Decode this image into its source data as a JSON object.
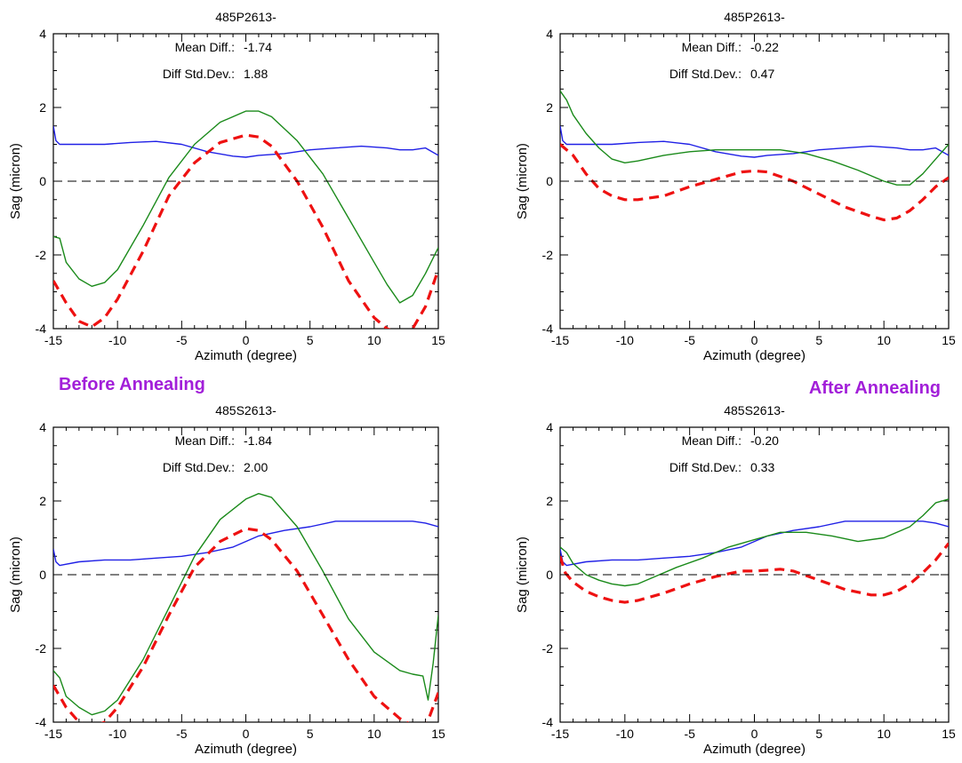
{
  "labels": {
    "before": "Before Annealing",
    "after": "After Annealing"
  },
  "colors": {
    "blue": "#2020e6",
    "green": "#1a8a1a",
    "red": "#ee1111",
    "label": "#a21fd9"
  },
  "chart_data": [
    {
      "type": "line",
      "title": "485P2613-",
      "xlabel": "Azimuth (degree)",
      "ylabel": "Sag (micron)",
      "xlim": [
        -15,
        15
      ],
      "ylim": [
        -4,
        4
      ],
      "xticks": [
        -15,
        -10,
        -5,
        0,
        5,
        10,
        15
      ],
      "yticks": [
        -4,
        -2,
        0,
        2,
        4
      ],
      "annotations": [
        {
          "label": "Mean Diff.:",
          "value": "-1.74"
        },
        {
          "label": "Diff Std.Dev.:",
          "value": "1.88"
        }
      ],
      "series": [
        {
          "color": "blue",
          "style": "solid",
          "x": [
            -15,
            -14.8,
            -14.5,
            -13,
            -11,
            -9,
            -7,
            -5,
            -3,
            -1,
            0,
            1,
            3,
            5,
            7,
            9,
            11,
            12,
            13,
            14,
            15
          ],
          "y": [
            1.5,
            1.1,
            1.0,
            1.0,
            1.0,
            1.05,
            1.08,
            1.0,
            0.8,
            0.68,
            0.65,
            0.7,
            0.75,
            0.85,
            0.9,
            0.95,
            0.9,
            0.85,
            0.85,
            0.9,
            0.7
          ]
        },
        {
          "color": "green",
          "style": "solid",
          "x": [
            -15,
            -14.5,
            -14,
            -13,
            -12,
            -11,
            -10,
            -8,
            -6,
            -4,
            -2,
            0,
            1,
            2,
            4,
            6,
            8,
            10,
            11,
            12,
            13,
            14,
            15
          ],
          "y": [
            -1.5,
            -1.55,
            -2.2,
            -2.65,
            -2.85,
            -2.75,
            -2.4,
            -1.2,
            0.1,
            1.0,
            1.6,
            1.9,
            1.9,
            1.75,
            1.1,
            0.2,
            -1.0,
            -2.2,
            -2.8,
            -3.3,
            -3.1,
            -2.5,
            -1.8
          ]
        },
        {
          "color": "red",
          "style": "dashed",
          "x": [
            -15,
            -14,
            -13,
            -12,
            -11,
            -10,
            -8,
            -6,
            -4,
            -2,
            0,
            1,
            2,
            4,
            6,
            8,
            10,
            11,
            12,
            13,
            14,
            15
          ],
          "y": [
            -2.7,
            -3.3,
            -3.8,
            -3.95,
            -3.7,
            -3.2,
            -1.9,
            -0.4,
            0.5,
            1.05,
            1.25,
            1.2,
            0.95,
            0.0,
            -1.25,
            -2.7,
            -3.7,
            -4.0,
            -4.15,
            -4.0,
            -3.4,
            -2.4
          ]
        },
        {
          "color": "black",
          "style": "dashed",
          "x": [
            -15,
            15
          ],
          "y": [
            0,
            0
          ]
        }
      ]
    },
    {
      "type": "line",
      "title": "485P2613-",
      "xlabel": "Azimuth (degree)",
      "ylabel": "Sag (micron)",
      "xlim": [
        -15,
        15
      ],
      "ylim": [
        -4,
        4
      ],
      "xticks": [
        -15,
        -10,
        -5,
        0,
        5,
        10,
        15
      ],
      "yticks": [
        -4,
        -2,
        0,
        2,
        4
      ],
      "annotations": [
        {
          "label": "Mean Diff.:",
          "value": "-0.22"
        },
        {
          "label": "Diff Std.Dev.:",
          "value": "0.47"
        }
      ],
      "series": [
        {
          "color": "blue",
          "style": "solid",
          "x": [
            -15,
            -14.8,
            -14.5,
            -13,
            -11,
            -9,
            -7,
            -5,
            -3,
            -1,
            0,
            1,
            3,
            5,
            7,
            9,
            11,
            12,
            13,
            14,
            15
          ],
          "y": [
            1.5,
            1.1,
            1.0,
            1.0,
            1.0,
            1.05,
            1.08,
            1.0,
            0.8,
            0.68,
            0.65,
            0.7,
            0.75,
            0.85,
            0.9,
            0.95,
            0.9,
            0.85,
            0.85,
            0.9,
            0.7
          ]
        },
        {
          "color": "green",
          "style": "solid",
          "x": [
            -15,
            -14.5,
            -14,
            -13,
            -12,
            -11,
            -10,
            -9,
            -7,
            -5,
            -3,
            -1,
            0,
            2,
            4,
            6,
            8,
            10,
            11,
            12,
            13,
            14,
            15
          ],
          "y": [
            2.45,
            2.2,
            1.8,
            1.3,
            0.9,
            0.6,
            0.5,
            0.55,
            0.7,
            0.8,
            0.85,
            0.85,
            0.85,
            0.85,
            0.75,
            0.55,
            0.3,
            0.0,
            -0.1,
            -0.1,
            0.2,
            0.6,
            1.0
          ]
        },
        {
          "color": "red",
          "style": "dashed",
          "x": [
            -15,
            -14,
            -13,
            -12,
            -11,
            -10,
            -9,
            -7,
            -5,
            -3,
            -1,
            0,
            1,
            3,
            5,
            7,
            9,
            10,
            11,
            12,
            13,
            14,
            15
          ],
          "y": [
            1.0,
            0.7,
            0.2,
            -0.2,
            -0.4,
            -0.5,
            -0.5,
            -0.4,
            -0.15,
            0.05,
            0.25,
            0.28,
            0.25,
            0.0,
            -0.35,
            -0.7,
            -0.95,
            -1.05,
            -1.0,
            -0.8,
            -0.5,
            -0.15,
            0.1
          ]
        },
        {
          "color": "black",
          "style": "dashed",
          "x": [
            -15,
            15
          ],
          "y": [
            0,
            0
          ]
        }
      ]
    },
    {
      "type": "line",
      "title": "485S2613-",
      "xlabel": "Azimuth (degree)",
      "ylabel": "Sag (micron)",
      "xlim": [
        -15,
        15
      ],
      "ylim": [
        -4,
        4
      ],
      "xticks": [
        -15,
        -10,
        -5,
        0,
        5,
        10,
        15
      ],
      "yticks": [
        -4,
        -2,
        0,
        2,
        4
      ],
      "annotations": [
        {
          "label": "Mean Diff.:",
          "value": "-1.84"
        },
        {
          "label": "Diff Std.Dev.:",
          "value": "2.00"
        }
      ],
      "series": [
        {
          "color": "blue",
          "style": "solid",
          "x": [
            -15,
            -14.8,
            -14.5,
            -13,
            -11,
            -9,
            -7,
            -5,
            -3,
            -1,
            0,
            1,
            3,
            5,
            7,
            9,
            11,
            13,
            14,
            15
          ],
          "y": [
            0.7,
            0.35,
            0.25,
            0.35,
            0.4,
            0.4,
            0.45,
            0.5,
            0.6,
            0.75,
            0.9,
            1.05,
            1.2,
            1.3,
            1.45,
            1.45,
            1.45,
            1.45,
            1.4,
            1.3
          ]
        },
        {
          "color": "green",
          "style": "solid",
          "x": [
            -15,
            -14.5,
            -14,
            -13,
            -12,
            -11,
            -10,
            -8,
            -6,
            -4,
            -2,
            0,
            1,
            2,
            4,
            6,
            8,
            10,
            12,
            13,
            13.8,
            14.2,
            14.6,
            15
          ],
          "y": [
            -2.6,
            -2.8,
            -3.3,
            -3.6,
            -3.8,
            -3.7,
            -3.4,
            -2.3,
            -0.9,
            0.5,
            1.5,
            2.05,
            2.2,
            2.1,
            1.3,
            0.1,
            -1.2,
            -2.1,
            -2.6,
            -2.7,
            -2.75,
            -3.4,
            -2.4,
            -1.1
          ]
        },
        {
          "color": "red",
          "style": "dashed",
          "x": [
            -15,
            -14,
            -13,
            -12,
            -11,
            -10,
            -8,
            -6,
            -4,
            -2,
            0,
            1,
            2,
            4,
            6,
            8,
            10,
            12,
            13,
            14,
            15
          ],
          "y": [
            -3.0,
            -3.6,
            -4.0,
            -4.15,
            -4.0,
            -3.6,
            -2.5,
            -1.1,
            0.2,
            0.9,
            1.25,
            1.2,
            0.95,
            0.1,
            -1.1,
            -2.3,
            -3.3,
            -3.9,
            -4.1,
            -4.15,
            -3.2
          ]
        },
        {
          "color": "black",
          "style": "dashed",
          "x": [
            -15,
            15
          ],
          "y": [
            0,
            0
          ]
        }
      ]
    },
    {
      "type": "line",
      "title": "485S2613-",
      "xlabel": "Azimuth (degree)",
      "ylabel": "Sag (micron)",
      "xlim": [
        -15,
        15
      ],
      "ylim": [
        -4,
        4
      ],
      "xticks": [
        -15,
        -10,
        -5,
        0,
        5,
        10,
        15
      ],
      "yticks": [
        -4,
        -2,
        0,
        2,
        4
      ],
      "annotations": [
        {
          "label": "Mean Diff.:",
          "value": "-0.20"
        },
        {
          "label": "Diff Std.Dev.:",
          "value": "0.33"
        }
      ],
      "series": [
        {
          "color": "blue",
          "style": "solid",
          "x": [
            -15,
            -14.8,
            -14.5,
            -13,
            -11,
            -9,
            -7,
            -5,
            -3,
            -1,
            0,
            1,
            3,
            5,
            7,
            9,
            11,
            13,
            14,
            15
          ],
          "y": [
            0.7,
            0.35,
            0.25,
            0.35,
            0.4,
            0.4,
            0.45,
            0.5,
            0.6,
            0.75,
            0.9,
            1.05,
            1.2,
            1.3,
            1.45,
            1.45,
            1.45,
            1.45,
            1.4,
            1.3
          ]
        },
        {
          "color": "green",
          "style": "solid",
          "x": [
            -15,
            -14.5,
            -14,
            -13,
            -12,
            -11,
            -10,
            -9,
            -8,
            -6,
            -4,
            -2,
            0,
            2,
            4,
            6,
            8,
            10,
            12,
            13,
            14,
            15
          ],
          "y": [
            0.75,
            0.6,
            0.3,
            0.0,
            -0.15,
            -0.25,
            -0.3,
            -0.25,
            -0.1,
            0.2,
            0.45,
            0.75,
            0.95,
            1.15,
            1.15,
            1.05,
            0.9,
            1.0,
            1.3,
            1.6,
            1.95,
            2.05
          ]
        },
        {
          "color": "red",
          "style": "dashed",
          "x": [
            -15,
            -14.6,
            -14,
            -13,
            -12,
            -11,
            -10,
            -9,
            -7,
            -5,
            -3,
            -1,
            0,
            1,
            2,
            3,
            5,
            7,
            9,
            10,
            11,
            12,
            13,
            14,
            15
          ],
          "y": [
            0.5,
            0.05,
            -0.2,
            -0.45,
            -0.6,
            -0.7,
            -0.75,
            -0.7,
            -0.5,
            -0.25,
            -0.05,
            0.1,
            0.1,
            0.12,
            0.15,
            0.1,
            -0.15,
            -0.4,
            -0.55,
            -0.55,
            -0.45,
            -0.25,
            0.05,
            0.4,
            0.85
          ]
        },
        {
          "color": "black",
          "style": "dashed",
          "x": [
            -15,
            15
          ],
          "y": [
            0,
            0
          ]
        }
      ]
    }
  ]
}
